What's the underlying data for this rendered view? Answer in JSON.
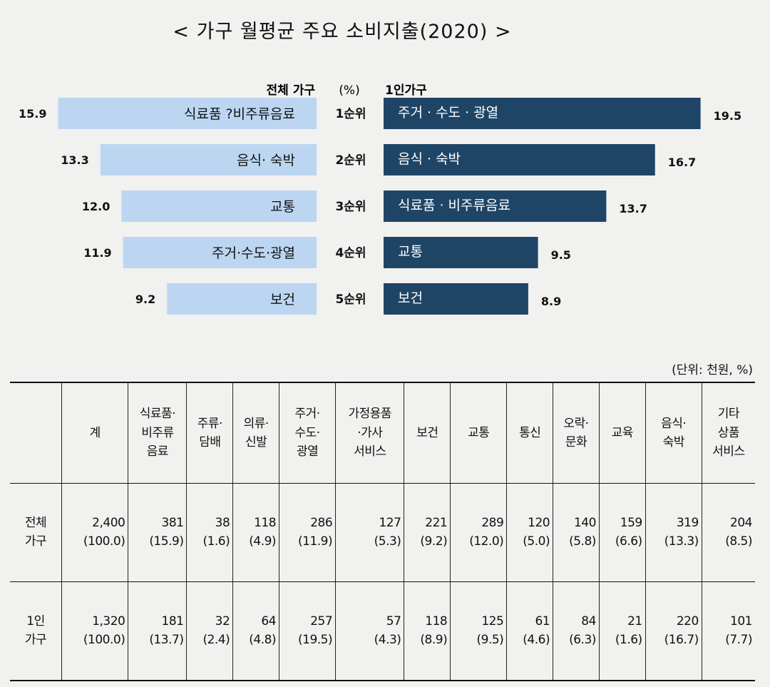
{
  "title": "< 가구 월평균 주요 소비지출(2020) >",
  "chart_data": {
    "type": "bar",
    "unit_label": "(%)",
    "left": {
      "name": "전체 가구",
      "color": "#bcd6f2",
      "items": [
        {
          "rank": "1순위",
          "label": "식료품 ?비주류음료",
          "value": 15.9
        },
        {
          "rank": "2순위",
          "label": "음식· 숙박",
          "value": 13.3
        },
        {
          "rank": "3순위",
          "label": "교통",
          "value": 12.0
        },
        {
          "rank": "4순위",
          "label": "주거·수도·광열",
          "value": 11.9
        },
        {
          "rank": "5순위",
          "label": "보건",
          "value": 9.2
        }
      ]
    },
    "right": {
      "name": "1인가구",
      "color": "#1f4566",
      "items": [
        {
          "label": "주거 · 수도 · 광열",
          "value": 19.5
        },
        {
          "label": "음식 · 숙박",
          "value": 16.7
        },
        {
          "label": "식료품 · 비주류음료",
          "value": 13.7
        },
        {
          "label": "교통",
          "value": 9.5
        },
        {
          "label": "보건",
          "value": 8.9
        }
      ]
    },
    "value_labels_left": [
      "15.9",
      "13.3",
      "12.0",
      "11.9",
      "9.2"
    ],
    "value_labels_right": [
      "19.5",
      "16.7",
      "13.7",
      "9.5",
      "8.9"
    ]
  },
  "table": {
    "unit": "(단위: 천원, %)",
    "headers": [
      "계",
      "식료품·\n비주류\n음료",
      "주류·\n담배",
      "의류·\n신발",
      "주거·\n수도·\n광열",
      "가정용품\n·가사\n서비스",
      "보건",
      "교통",
      "통신",
      "오락·\n문화",
      "교육",
      "음식·\n숙박",
      "기타\n상품\n서비스"
    ],
    "rows": [
      {
        "label": "전체\n가구",
        "cells": [
          "2,400\n(100.0)",
          "381\n(15.9)",
          "38\n(1.6)",
          "118\n(4.9)",
          "286\n(11.9)",
          "127\n(5.3)",
          "221\n(9.2)",
          "289\n(12.0)",
          "120\n(5.0)",
          "140\n(5.8)",
          "159\n(6.6)",
          "319\n(13.3)",
          "204\n(8.5)"
        ]
      },
      {
        "label": "1인\n가구",
        "cells": [
          "1,320\n(100.0)",
          "181\n(13.7)",
          "32\n(2.4)",
          "64\n(4.8)",
          "257\n(19.5)",
          "57\n(4.3)",
          "118\n(8.9)",
          "125\n(9.5)",
          "61\n(4.6)",
          "84\n(6.3)",
          "21\n(1.6)",
          "220\n(16.7)",
          "101\n(7.7)"
        ]
      }
    ]
  }
}
